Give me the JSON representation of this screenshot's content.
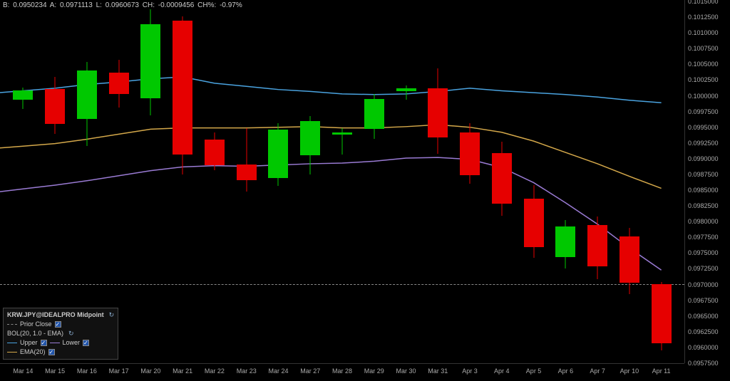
{
  "header": {
    "B_label": "B:",
    "B": "0.0950234",
    "A_label": "A:",
    "A": "0.0971113",
    "L_label": "L:",
    "L": "0.0960673",
    "CH_label": "CH:",
    "CH": "-0.0009456",
    "CHpct_label": "CH%:",
    "CHpct": "-0.97%"
  },
  "legend": {
    "title": "KRW.JPY@IDEALPRO Midpoint",
    "prior_close": "Prior Close",
    "bol": "BOL(20, 1.0 - EMA)",
    "upper": "Upper",
    "lower": "Lower",
    "ema": "EMA(20)"
  },
  "chart": {
    "background": "#000000",
    "grid_color": "#333333",
    "text_color": "#aaaaaa",
    "ylim": [
      0.09575,
      0.1015
    ],
    "ytick_step": 0.00025,
    "y_ticks": [
      "0.1015000",
      "0.1012500",
      "0.1010000",
      "0.1007500",
      "0.1005000",
      "0.1002500",
      "0.1000000",
      "0.0997500",
      "0.0995000",
      "0.0992500",
      "0.0990000",
      "0.0987500",
      "0.0985000",
      "0.0982500",
      "0.0980000",
      "0.0977500",
      "0.0975000",
      "0.0972500",
      "0.0970000",
      "0.0967500",
      "0.0965000",
      "0.0962500",
      "0.0960000",
      "0.0957500"
    ],
    "x_labels": [
      "Mar 14",
      "Mar 15",
      "Mar 16",
      "Mar 17",
      "Mar 20",
      "Mar 21",
      "Mar 22",
      "Mar 23",
      "Mar 24",
      "Mar 27",
      "Mar 28",
      "Mar 29",
      "Mar 30",
      "Mar 31",
      "Apr 3",
      "Apr 4",
      "Apr 5",
      "Apr 6",
      "Apr 7",
      "Apr 10",
      "Apr 11"
    ],
    "candle_width": 28,
    "up_color": "#00c800",
    "down_color": "#e60000",
    "wick_color_up": "#00c800",
    "wick_color_down": "#e60000",
    "prior_close_line": 0.09701,
    "prior_close_color": "#888888",
    "lines": {
      "upper": {
        "color": "#4aa3e0",
        "width": 1.5
      },
      "lower": {
        "color": "#9a7bd4",
        "width": 1.5
      },
      "ema": {
        "color": "#d4a84a",
        "width": 1.5
      }
    },
    "candles": [
      {
        "o": 0.09994,
        "h": 0.10013,
        "l": 0.09979,
        "c": 0.10009,
        "dir": "up"
      },
      {
        "o": 0.10011,
        "h": 0.1003,
        "l": 0.0994,
        "c": 0.09955,
        "dir": "down"
      },
      {
        "o": 0.09963,
        "h": 0.10054,
        "l": 0.0992,
        "c": 0.1004,
        "dir": "up"
      },
      {
        "o": 0.10037,
        "h": 0.10057,
        "l": 0.09981,
        "c": 0.10003,
        "dir": "down"
      },
      {
        "o": 0.09996,
        "h": 0.10137,
        "l": 0.09969,
        "c": 0.10114,
        "dir": "up"
      },
      {
        "o": 0.10119,
        "h": 0.10126,
        "l": 0.09875,
        "c": 0.09907,
        "dir": "down"
      },
      {
        "o": 0.0993,
        "h": 0.09942,
        "l": 0.09882,
        "c": 0.0989,
        "dir": "down"
      },
      {
        "o": 0.09891,
        "h": 0.09948,
        "l": 0.09848,
        "c": 0.09866,
        "dir": "down"
      },
      {
        "o": 0.09869,
        "h": 0.09957,
        "l": 0.09857,
        "c": 0.09946,
        "dir": "up"
      },
      {
        "o": 0.09905,
        "h": 0.09968,
        "l": 0.09875,
        "c": 0.0996,
        "dir": "up"
      },
      {
        "o": 0.09938,
        "h": 0.09948,
        "l": 0.09907,
        "c": 0.09942,
        "dir": "up"
      },
      {
        "o": 0.09947,
        "h": 0.10003,
        "l": 0.09932,
        "c": 0.09995,
        "dir": "up"
      },
      {
        "o": 0.10007,
        "h": 0.10016,
        "l": 0.09994,
        "c": 0.10012,
        "dir": "up"
      },
      {
        "o": 0.10012,
        "h": 0.10044,
        "l": 0.09908,
        "c": 0.09934,
        "dir": "down"
      },
      {
        "o": 0.09942,
        "h": 0.09957,
        "l": 0.0986,
        "c": 0.09874,
        "dir": "down"
      },
      {
        "o": 0.09909,
        "h": 0.09927,
        "l": 0.09809,
        "c": 0.09829,
        "dir": "down"
      },
      {
        "o": 0.09837,
        "h": 0.09858,
        "l": 0.09742,
        "c": 0.09759,
        "dir": "down"
      },
      {
        "o": 0.09744,
        "h": 0.09803,
        "l": 0.09725,
        "c": 0.09792,
        "dir": "up"
      },
      {
        "o": 0.09795,
        "h": 0.09808,
        "l": 0.09708,
        "c": 0.09729,
        "dir": "down"
      },
      {
        "o": 0.09776,
        "h": 0.0979,
        "l": 0.09685,
        "c": 0.09703,
        "dir": "down"
      },
      {
        "o": 0.09701,
        "h": 0.09704,
        "l": 0.09595,
        "c": 0.09607,
        "dir": "down"
      }
    ],
    "upper_pts": [
      0.10008,
      0.10012,
      0.10018,
      0.10022,
      0.10027,
      0.1003,
      0.1002,
      0.10015,
      0.1001,
      0.10007,
      0.10003,
      0.10002,
      0.10003,
      0.10007,
      0.10012,
      0.10008,
      0.10005,
      0.10002,
      0.09998,
      0.09993,
      0.09989
    ],
    "lower_pts": [
      0.09852,
      0.09858,
      0.09865,
      0.09873,
      0.09881,
      0.09887,
      0.09889,
      0.09888,
      0.0989,
      0.09892,
      0.09893,
      0.09896,
      0.09901,
      0.09902,
      0.09899,
      0.09886,
      0.09862,
      0.0983,
      0.09796,
      0.09758,
      0.09723
    ],
    "ema_pts": [
      0.0992,
      0.09924,
      0.09931,
      0.09939,
      0.09947,
      0.09949,
      0.09949,
      0.09949,
      0.0995,
      0.09951,
      0.09949,
      0.09949,
      0.09951,
      0.09954,
      0.0995,
      0.09942,
      0.09928,
      0.0991,
      0.09892,
      0.09872,
      0.09853
    ]
  }
}
